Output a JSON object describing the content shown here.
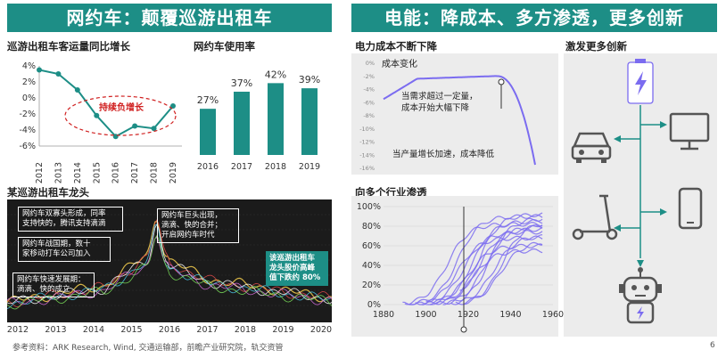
{
  "header": {
    "left_title": "网约车：颠覆巡游出租车",
    "right_title": "电能：降成本、多方渗透，更多创新"
  },
  "footer": {
    "source": "参考资料：ARK Research, Wind, 交通运输部，前瞻产业研究院，轨交资管",
    "page": "6"
  },
  "colors": {
    "accent": "#1d8e86",
    "annotation_red": "#d02020",
    "curve_purple": "#7b6cf0"
  },
  "chart_data": [
    {
      "id": "taxi-growth",
      "type": "line",
      "title": "巡游出租车客运量同比增长",
      "x": [
        "2012",
        "2013",
        "2014",
        "2015",
        "2016",
        "2017",
        "2018",
        "2019"
      ],
      "values": [
        3.5,
        3.0,
        1.0,
        -2.2,
        -4.8,
        -3.5,
        -3.8,
        -1.0
      ],
      "y_ticks": [
        "4%",
        "2%",
        "0%",
        "-2%",
        "-4%",
        "-6%"
      ],
      "ylim": [
        -6,
        4
      ],
      "annotation": "持续负增长"
    },
    {
      "id": "ride-hailing-usage",
      "type": "bar",
      "title": "网约车使用率",
      "categories": [
        "2016",
        "2017",
        "2018",
        "2019"
      ],
      "values": [
        27,
        37,
        42,
        39
      ],
      "data_labels": [
        "27%",
        "37%",
        "42%",
        "39%"
      ],
      "ylim": [
        0,
        50
      ]
    },
    {
      "id": "taxi-leader-stock",
      "type": "line",
      "title": "某巡游出租车龙头",
      "x_ticks": [
        "2012",
        "2013",
        "2014",
        "2015",
        "2016",
        "2017",
        "2018",
        "2019",
        "2020"
      ],
      "callouts": [
        "网约车双寡头形成，同率\n支持快的，腾讯支持滴滴",
        "网约车战国期，数十\n家移动打车公司加入",
        "网约车快速发展期：\n滴滴、快的成立",
        "网约车巨头出现，\n滴滴、快的合并；\n开启网约车时代",
        "该巡游出租车\n龙头股价高峰\n值下跌约 80%"
      ]
    },
    {
      "id": "power-cost",
      "type": "line",
      "title": "电力成本不断下降",
      "y_ticks": [
        "0%",
        "-2%",
        "-4%",
        "-6%",
        "-8%",
        "-10%",
        "-12%",
        "-14%",
        "-16%"
      ],
      "ylim": [
        -16,
        0
      ],
      "series_label": "成本变化",
      "annotations": [
        "当需求超过一定量，\n成本开始大幅下降",
        "当产量增长加速，成本降低"
      ]
    },
    {
      "id": "industry-penetration",
      "type": "line",
      "title": "向多个行业渗透",
      "x_ticks": [
        "1880",
        "1900",
        "1920",
        "1940",
        "1960"
      ],
      "y_ticks": [
        "100%",
        "80%",
        "60%",
        "40%",
        "20%",
        "0%"
      ],
      "xlim": [
        1880,
        1960
      ],
      "ylim": [
        0,
        100
      ],
      "series": [
        {
          "start": 1889,
          "mid": 1915,
          "plateau": 90
        },
        {
          "start": 1890,
          "mid": 1910,
          "plateau": 82
        },
        {
          "start": 1892,
          "mid": 1922,
          "plateau": 85
        },
        {
          "start": 1895,
          "mid": 1918,
          "plateau": 74
        },
        {
          "start": 1898,
          "mid": 1925,
          "plateau": 92
        },
        {
          "start": 1900,
          "mid": 1915,
          "plateau": 68
        },
        {
          "start": 1902,
          "mid": 1928,
          "plateau": 80
        },
        {
          "start": 1905,
          "mid": 1920,
          "plateau": 60
        },
        {
          "start": 1908,
          "mid": 1930,
          "plateau": 88
        },
        {
          "start": 1910,
          "mid": 1925,
          "plateau": 77
        },
        {
          "start": 1912,
          "mid": 1932,
          "plateau": 70
        },
        {
          "start": 1914,
          "mid": 1936,
          "plateau": 84
        },
        {
          "start": 1916,
          "mid": 1922,
          "plateau": 55
        },
        {
          "start": 1918,
          "mid": 1935,
          "plateau": 64
        }
      ]
    }
  ],
  "innovation": {
    "title": "激发更多创新",
    "icons": [
      "battery-icon",
      "monitor-icon",
      "car-icon",
      "phone-icon",
      "scooter-icon",
      "robot-icon"
    ]
  }
}
